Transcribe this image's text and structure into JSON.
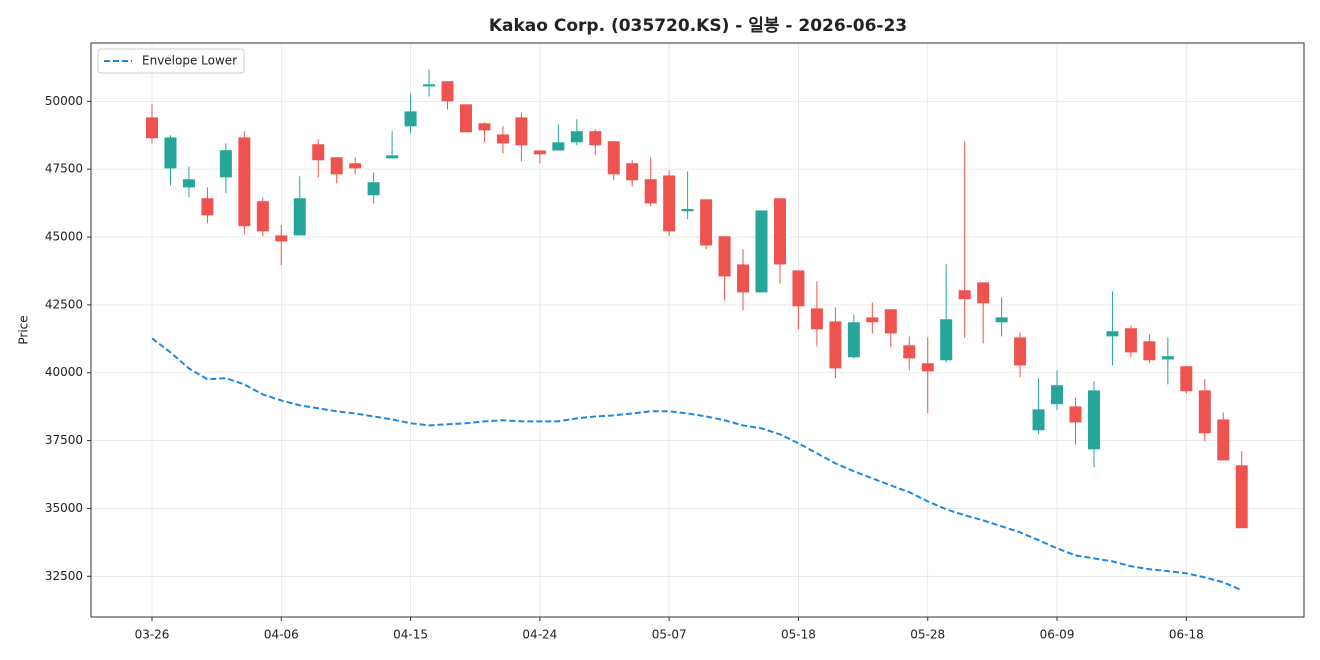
{
  "chart_data": {
    "type": "candlestick",
    "title": "Kakao Corp. (035720.KS) - 일봉 - 2026-06-23",
    "y_label": "Price",
    "categories": [
      "03-26",
      null,
      null,
      null,
      null,
      null,
      null,
      "04-06",
      null,
      null,
      null,
      null,
      null,
      null,
      "04-15",
      null,
      null,
      null,
      null,
      null,
      null,
      "04-24",
      null,
      null,
      null,
      null,
      null,
      null,
      "05-07",
      null,
      null,
      null,
      null,
      null,
      null,
      "05-18",
      null,
      null,
      null,
      null,
      null,
      null,
      "05-28",
      null,
      null,
      null,
      null,
      null,
      null,
      "06-09",
      null,
      null,
      null,
      null,
      null,
      null,
      "06-18",
      null,
      null,
      null
    ],
    "open": [
      49410,
      47530,
      46830,
      46430,
      47200,
      48670,
      46320,
      45060,
      45060,
      48420,
      47940,
      47720,
      46540,
      47900,
      49080,
      50550,
      50740,
      49890,
      49190,
      48780,
      49410,
      48190,
      48190,
      48490,
      48900,
      48530,
      47720,
      47130,
      47270,
      45950,
      46390,
      45030,
      43990,
      42960,
      46430,
      43770,
      42370,
      41890,
      40570,
      42040,
      42340,
      41010,
      40350,
      40460,
      43040,
      43330,
      41860,
      41300,
      37880,
      38840,
      38760,
      37180,
      41340,
      41640,
      41160,
      40490,
      40240,
      39350,
      38280,
      36590
    ],
    "high": [
      49890,
      48750,
      47600,
      46830,
      48450,
      48900,
      46460,
      45430,
      47240,
      48600,
      47940,
      47940,
      47380,
      48900,
      50290,
      51180,
      50740,
      49890,
      49230,
      49080,
      49590,
      48190,
      49150,
      49340,
      48970,
      48530,
      47830,
      47940,
      47460,
      47420,
      46390,
      45030,
      44550,
      45980,
      46430,
      43770,
      43370,
      42410,
      42150,
      42590,
      42340,
      41340,
      41300,
      44000,
      48530,
      43330,
      42780,
      41490,
      39800,
      40090,
      39090,
      39690,
      43000,
      41750,
      41420,
      41300,
      40240,
      39760,
      38540,
      37110
    ],
    "low": [
      48450,
      46900,
      46460,
      45510,
      46610,
      45100,
      45030,
      43960,
      45060,
      47200,
      46980,
      47310,
      46240,
      47900,
      48820,
      50180,
      49700,
      48860,
      48490,
      48080,
      47790,
      47720,
      48190,
      48380,
      48010,
      47090,
      46870,
      46130,
      45030,
      45660,
      44550,
      42670,
      42300,
      42960,
      43290,
      41600,
      40970,
      39800,
      40530,
      41450,
      40940,
      40090,
      38510,
      40380,
      41300,
      41080,
      41340,
      39830,
      37730,
      38620,
      37360,
      36520,
      40270,
      40570,
      40350,
      39570,
      39240,
      37470,
      36770,
      34270
    ],
    "close": [
      48640,
      48670,
      47130,
      45800,
      48200,
      45400,
      45210,
      44840,
      46430,
      47830,
      47310,
      47530,
      47020,
      48010,
      49630,
      50630,
      50000,
      48860,
      48930,
      48450,
      48380,
      48050,
      48490,
      48900,
      48380,
      47310,
      47090,
      46240,
      45210,
      46030,
      44690,
      43550,
      42960,
      45980,
      43990,
      42450,
      41600,
      40160,
      41860,
      41860,
      41450,
      40530,
      40050,
      41970,
      42710,
      42560,
      42040,
      40270,
      38650,
      39540,
      38170,
      39350,
      41530,
      40750,
      40460,
      40610,
      39320,
      37770,
      36770,
      34270
    ],
    "up_color": "#26a69a",
    "down_color": "#ef5350",
    "series": [
      {
        "name": "Envelope Lower",
        "color": "#1e88e5",
        "values": [
          41270,
          40750,
          40160,
          39760,
          39800,
          39570,
          39200,
          38980,
          38800,
          38690,
          38580,
          38500,
          38390,
          38280,
          38140,
          38060,
          38100,
          38140,
          38210,
          38250,
          38210,
          38210,
          38210,
          38320,
          38390,
          38430,
          38500,
          38580,
          38580,
          38500,
          38390,
          38250,
          38060,
          37950,
          37730,
          37400,
          37030,
          36660,
          36370,
          36110,
          35850,
          35600,
          35260,
          34970,
          34750,
          34560,
          34340,
          34120,
          33830,
          33530,
          33270,
          33160,
          33050,
          32870,
          32760,
          32690,
          32610,
          32460,
          32280,
          31990
        ]
      }
    ],
    "ylim": [
      31000,
      52150
    ],
    "yticks": [
      32500,
      35000,
      37500,
      40000,
      42500,
      45000,
      47500,
      50000
    ],
    "grid": true,
    "legend": "upper left"
  }
}
